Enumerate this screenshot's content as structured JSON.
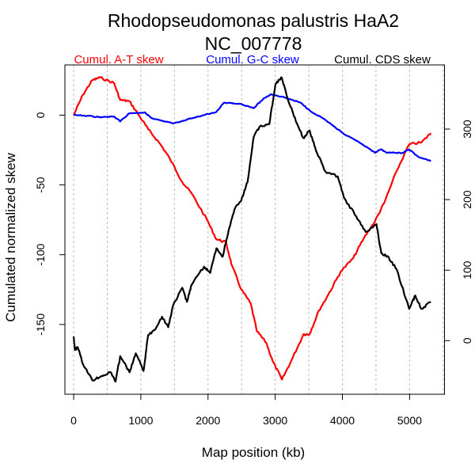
{
  "chart_data": {
    "type": "line",
    "title": "Rhodopseudomonas palustris HaA2",
    "subtitle": "NC_007778",
    "xlabel": "Map position (kb)",
    "ylabel": "Cumulated normalized skew",
    "xlim": [
      -130,
      5520
    ],
    "ylim_left": [
      -200,
      36
    ],
    "ylim_right": [
      -76,
      391
    ],
    "x_ticks": [
      0,
      1000,
      2000,
      3000,
      4000,
      5000
    ],
    "y_ticks_left": [
      -150,
      -100,
      -50,
      0
    ],
    "y_ticks_right": [
      0,
      100,
      200,
      300
    ],
    "grid_x": [
      0,
      500,
      1000,
      1500,
      2000,
      2500,
      3000,
      3500,
      4000,
      4500,
      5000,
      5500
    ],
    "legend": [
      "Cumul. A-T skew",
      "Cumul. G-C skew",
      "Cumul. CDS skew"
    ],
    "legend_placement": "top",
    "series": [
      {
        "name": "Cumul. A-T skew",
        "color": "#ff0000",
        "axis": "left",
        "x": [
          0,
          138,
          277,
          393,
          601,
          693,
          829,
          970,
          1108,
          1293,
          1430,
          1618,
          1755,
          1985,
          2125,
          2265,
          2357,
          2496,
          2635,
          2728,
          2866,
          2960,
          3100,
          3240,
          3420,
          3510,
          3651,
          3786,
          3975,
          4160,
          4321,
          4485,
          4621,
          4808,
          4993,
          5178,
          5317
        ],
        "y": [
          0,
          14.6,
          25,
          27,
          23,
          10.8,
          10,
          0,
          -10,
          -21,
          -31,
          -48,
          -56,
          -75,
          -89,
          -91,
          -108,
          -125,
          -135,
          -155,
          -163,
          -176,
          -189.5,
          -176,
          -157,
          -157,
          -140,
          -129,
          -112,
          -102.6,
          -88,
          -76,
          -63,
          -40,
          -21,
          -19.5,
          -12.8
        ]
      },
      {
        "name": "Cumul. G-C skew",
        "color": "#0000ff",
        "axis": "left",
        "x": [
          0,
          200,
          400,
          600,
          693,
          829,
          1062,
          1154,
          1477,
          1847,
          2125,
          2240,
          2496,
          2680,
          2820,
          2936,
          3144,
          3375,
          3515,
          3746,
          4024,
          4300,
          4485,
          4578,
          4670,
          4900,
          4993,
          5132,
          5317
        ],
        "y": [
          0,
          -0.5,
          -1.5,
          -1,
          -4.5,
          1.3,
          2,
          -2,
          -6,
          -1,
          2.3,
          9,
          8,
          5,
          11.6,
          15,
          12.6,
          9,
          3.3,
          -3.3,
          -13.6,
          -21,
          -27,
          -24.5,
          -27,
          -27,
          -24.5,
          -30,
          -33
        ]
      },
      {
        "name": "Cumul. CDS skew",
        "color": "#000000",
        "axis": "right",
        "x": [
          0,
          19,
          60,
          138,
          277,
          415,
          555,
          624,
          693,
          832,
          924,
          1040,
          1108,
          1200,
          1316,
          1408,
          1477,
          1616,
          1686,
          1755,
          1940,
          2032,
          2125,
          2217,
          2310,
          2403,
          2496,
          2588,
          2680,
          2773,
          2912,
          3004,
          3097,
          3190,
          3328,
          3420,
          3513,
          3605,
          3746,
          3930,
          4022,
          4207,
          4346,
          4508,
          4578,
          4670,
          4808,
          4993,
          5085,
          5178,
          5317
        ],
        "y": [
          6,
          -13,
          -9,
          -33,
          -56,
          -50,
          -45,
          -58,
          -22,
          -45,
          -18,
          -43,
          8,
          15,
          34,
          19,
          49,
          75,
          55,
          79,
          105,
          96,
          131,
          119,
          158,
          188,
          199,
          225,
          289,
          304,
          307,
          364,
          373,
          341,
          307,
          287,
          298,
          270,
          240,
          233,
          203,
          176,
          154,
          165,
          124,
          120,
          101,
          45,
          64,
          45,
          55
        ]
      }
    ]
  }
}
